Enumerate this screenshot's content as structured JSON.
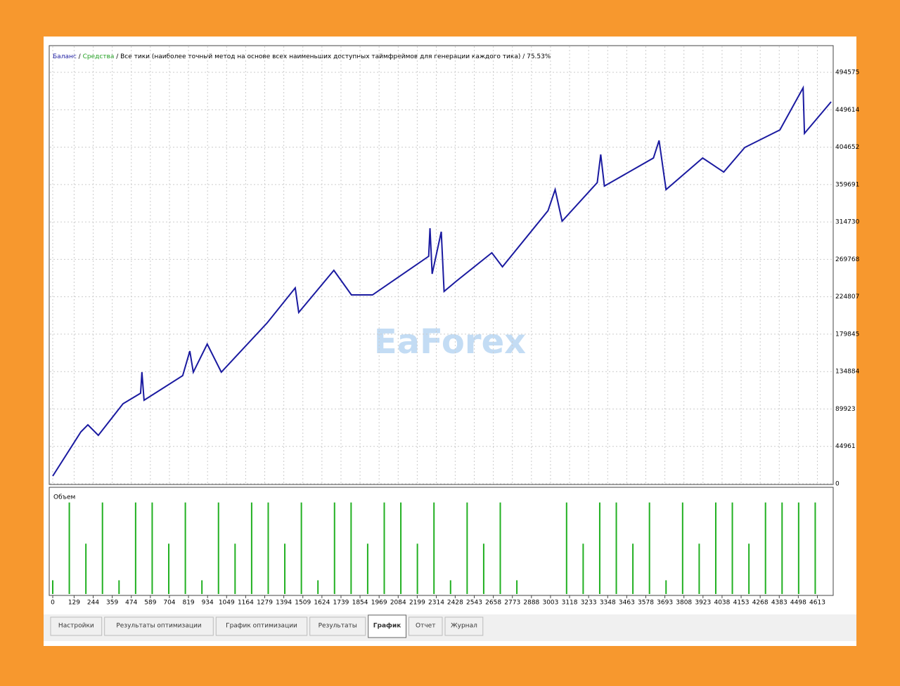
{
  "header": {
    "balance": "Баланс",
    "separator": " / ",
    "equity": "Средства",
    "info": " / Все тики (наиболее точный метод на основе всех наименьших доступных таймфреймов для генерации каждого тика) / ",
    "quality": "75.53%"
  },
  "watermark": "EaForex",
  "chart_data": [
    {
      "type": "line",
      "series": [
        {
          "name": "Баланс",
          "color": "#1a1aa0",
          "x": [
            0,
            170,
            212,
            275,
            424,
            530,
            538,
            551,
            784,
            827,
            848,
            932,
            1017,
            1293,
            1463,
            1484,
            1696,
            1802,
            1929,
            2268,
            2276,
            2289,
            2344,
            2361,
            2437,
            2649,
            2713,
            2988,
            3031,
            3073,
            3285,
            3306,
            3328,
            3624,
            3658,
            3700,
            3921,
            4048,
            4175,
            4387,
            4527,
            4535,
            4696
          ],
          "values": [
            9284,
            62456,
            70896,
            58236,
            96216,
            108876,
            134196,
            100436,
            129976,
            159516,
            134196,
            167956,
            134196,
            193276,
            235476,
            205936,
            256576,
            227036,
            227036,
            273456,
            307216,
            252356,
            302996,
            231256,
            243916,
            277676,
            260796,
            328316,
            353636,
            315656,
            362076,
            395836,
            357856,
            391616,
            412716,
            353636,
            391616,
            374736,
            404276,
            425376,
            476016,
            421156,
            459136
          ]
        }
      ],
      "xlim": [
        0,
        4700
      ],
      "ylim": [
        0,
        525000
      ],
      "xticks": [
        0,
        129,
        244,
        359,
        474,
        589,
        704,
        819,
        934,
        1049,
        1164,
        1279,
        1394,
        1509,
        1624,
        1739,
        1854,
        1969,
        2084,
        2199,
        2314,
        2428,
        2543,
        2658,
        2773,
        2888,
        3003,
        3118,
        3233,
        3348,
        3463,
        3578,
        3693,
        3808,
        3923,
        4038,
        4153,
        4268,
        4383,
        4498,
        4613
      ],
      "yticks": [
        0,
        44961,
        89923,
        134884,
        179845,
        224807,
        269768,
        314730,
        359691,
        404652,
        449614,
        494575
      ],
      "grid": true
    },
    {
      "type": "bar",
      "title": "Объем",
      "color": "#22b022",
      "x": [
        0,
        100,
        200,
        300,
        400,
        500,
        600,
        700,
        800,
        900,
        1000,
        1100,
        1200,
        1300,
        1400,
        1500,
        1600,
        1700,
        1800,
        1900,
        2000,
        2100,
        2200,
        2300,
        2400,
        2500,
        2600,
        2700,
        2800,
        2900,
        3000,
        3100,
        3200,
        3300,
        3400,
        3500,
        3600,
        3700,
        3800,
        3900,
        4000,
        4100,
        4200,
        4300,
        4400,
        4500,
        4600
      ],
      "values": [
        0.15,
        1,
        0.55,
        1,
        0.15,
        1,
        1,
        0.55,
        1,
        0.15,
        1,
        0.55,
        1,
        1,
        0.55,
        1,
        0.15,
        1,
        1,
        0.55,
        1,
        1,
        0.55,
        1,
        0.15,
        1,
        0.55,
        1,
        0.15,
        null,
        null,
        1,
        0.55,
        1,
        1,
        0.55,
        1,
        0.15,
        1,
        0.55,
        1,
        1,
        0.55,
        1,
        1,
        1,
        1
      ],
      "xlim": [
        0,
        4700
      ],
      "ylim": [
        0,
        1.12
      ]
    }
  ],
  "tabs": [
    "Настройки",
    "Результаты оптимизации",
    "График оптимизации",
    "Результаты",
    "График",
    "Отчет",
    "Журнал"
  ],
  "active_tab": 4
}
